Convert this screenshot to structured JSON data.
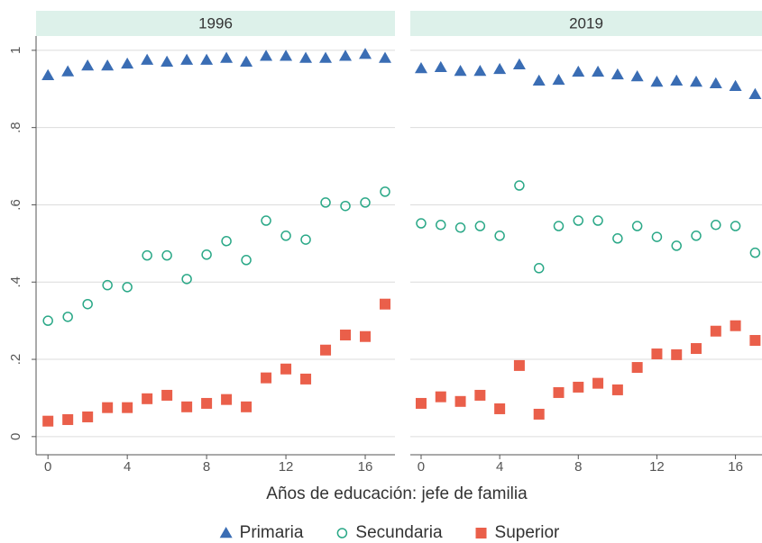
{
  "xlabel": "Años de educación: jefe de familia",
  "chart_data": [
    {
      "type": "scatter",
      "title": "1996",
      "x": [
        0,
        1,
        2,
        3,
        4,
        5,
        6,
        7,
        8,
        9,
        10,
        11,
        12,
        13,
        14,
        15,
        16,
        17
      ],
      "xlim": [
        -0.6,
        17.5
      ],
      "xticks": [
        0,
        4,
        8,
        12,
        16
      ],
      "ylim": [
        -0.047,
        1.037
      ],
      "yticks": [
        0,
        {
          "value": 0.2,
          "label": ".2"
        },
        {
          "value": 0.4,
          "label": ".4"
        },
        {
          "value": 0.6,
          "label": ".6"
        },
        {
          "value": 0.8,
          "label": ".8"
        },
        1
      ],
      "grid": true,
      "series": [
        {
          "name": "Primaria",
          "color": "#3a6db4",
          "marker": "triangle",
          "values": [
            0.935,
            0.945,
            0.96,
            0.96,
            0.965,
            0.975,
            0.97,
            0.975,
            0.975,
            0.98,
            0.97,
            0.985,
            0.985,
            0.98,
            0.98,
            0.985,
            0.99,
            0.98
          ]
        },
        {
          "name": "Secundaria",
          "color": "#2aa887",
          "marker": "circle-open",
          "values": [
            0.3,
            0.31,
            0.343,
            0.392,
            0.387,
            0.469,
            0.469,
            0.408,
            0.471,
            0.506,
            0.457,
            0.559,
            0.52,
            0.51,
            0.606,
            0.597,
            0.606,
            0.634
          ]
        },
        {
          "name": "Superior",
          "color": "#ea5f4a",
          "marker": "square",
          "values": [
            0.04,
            0.044,
            0.051,
            0.075,
            0.075,
            0.098,
            0.107,
            0.077,
            0.086,
            0.096,
            0.077,
            0.152,
            0.175,
            0.149,
            0.224,
            0.263,
            0.259,
            0.343
          ]
        }
      ]
    },
    {
      "type": "scatter",
      "title": "2019",
      "x": [
        0,
        1,
        2,
        3,
        4,
        5,
        6,
        7,
        8,
        9,
        10,
        11,
        12,
        13,
        14,
        15,
        16,
        17
      ],
      "xlim": [
        -0.55,
        17.35
      ],
      "xticks": [
        0,
        4,
        8,
        12,
        16
      ],
      "ylim": [
        -0.047,
        1.037
      ],
      "grid": true,
      "series": [
        {
          "name": "Primaria",
          "color": "#3a6db4",
          "marker": "triangle",
          "values": [
            0.953,
            0.956,
            0.946,
            0.946,
            0.951,
            0.963,
            0.921,
            0.923,
            0.944,
            0.944,
            0.937,
            0.932,
            0.918,
            0.921,
            0.918,
            0.914,
            0.907,
            0.886
          ]
        },
        {
          "name": "Secundaria",
          "color": "#2aa887",
          "marker": "circle-open",
          "values": [
            0.552,
            0.548,
            0.541,
            0.545,
            0.52,
            0.65,
            0.436,
            0.545,
            0.559,
            0.559,
            0.513,
            0.545,
            0.517,
            0.494,
            0.52,
            0.548,
            0.545,
            0.476
          ]
        },
        {
          "name": "Superior",
          "color": "#ea5f4a",
          "marker": "square",
          "values": [
            0.086,
            0.103,
            0.091,
            0.107,
            0.072,
            0.184,
            0.058,
            0.114,
            0.128,
            0.138,
            0.121,
            0.179,
            0.214,
            0.212,
            0.228,
            0.273,
            0.287,
            0.249
          ]
        }
      ]
    }
  ]
}
